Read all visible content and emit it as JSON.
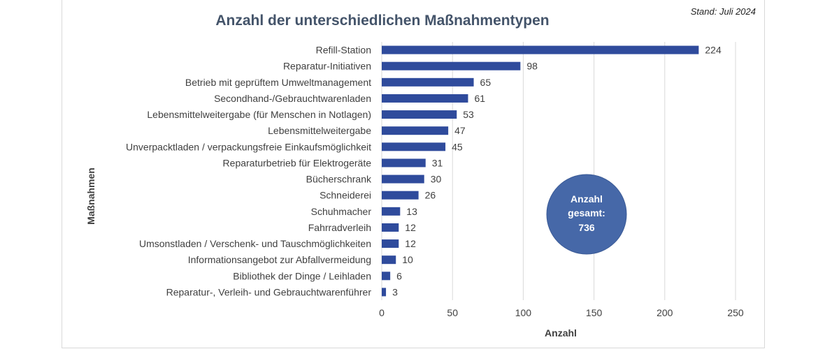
{
  "stand": "Stand: Juli 2024",
  "total_bubble": {
    "line1": "Anzahl",
    "line2": "gesamt:",
    "line3": "736"
  },
  "colors": {
    "bar": "#2f4b9c",
    "bubble": "#4668a8",
    "grid": "#d9d9d9",
    "title": "#44546a"
  },
  "chart_data": {
    "type": "bar",
    "orientation": "horizontal",
    "title": "Anzahl der unterschiedlichen Maßnahmentypen",
    "xlabel": "Anzahl",
    "ylabel": "Maßnahmen",
    "xlim": [
      0,
      250
    ],
    "xticks": [
      0,
      50,
      100,
      150,
      200,
      250
    ],
    "grid": true,
    "categories": [
      "Refill-Station",
      "Reparatur-Initiativen",
      "Betrieb mit geprüftem Umweltmanagement",
      "Secondhand-/Gebrauchtwarenladen",
      "Lebensmittelweitergabe (für Menschen in Notlagen)",
      "Lebensmittelweitergabe",
      "Unverpacktladen / verpackungsfreie Einkaufsmöglichkeit",
      "Reparaturbetrieb für Elektrogeräte",
      "Bücherschrank",
      "Schneiderei",
      "Schuhmacher",
      "Fahrradverleih",
      "Umsonstladen / Verschenk- und Tauschmöglichkeiten",
      "Informationsangebot zur Abfallvermeidung",
      "Bibliothek der Dinge / Leihladen",
      "Reparatur-, Verleih- und Gebrauchtwarenführer"
    ],
    "values": [
      224,
      98,
      65,
      61,
      53,
      47,
      45,
      31,
      30,
      26,
      13,
      12,
      12,
      10,
      6,
      3
    ]
  }
}
